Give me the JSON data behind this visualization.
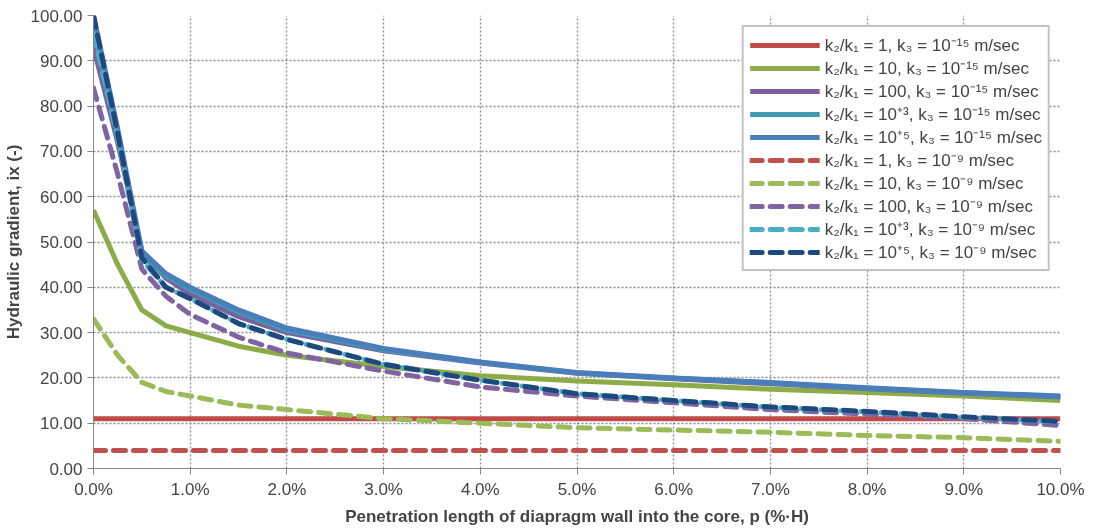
{
  "chart_data": {
    "type": "line",
    "xlabel": "Penetration length of diapragm wall into the core, p (%·H)",
    "ylabel": "Hydraulic gradient, ix (-)",
    "x": [
      0,
      0.25,
      0.5,
      0.75,
      1,
      1.5,
      2,
      3,
      4,
      5,
      6,
      7,
      8,
      9,
      10
    ],
    "xlim": [
      0,
      10
    ],
    "xticks": [
      {
        "value": 0,
        "label": "0.0%"
      },
      {
        "value": 1,
        "label": "1.0%"
      },
      {
        "value": 2,
        "label": "2.0%"
      },
      {
        "value": 3,
        "label": "3.0%"
      },
      {
        "value": 4,
        "label": "4.0%"
      },
      {
        "value": 5,
        "label": "5.0%"
      },
      {
        "value": 6,
        "label": "6.0%"
      },
      {
        "value": 7,
        "label": "7.0%"
      },
      {
        "value": 8,
        "label": "8.0%"
      },
      {
        "value": 9,
        "label": "9.0%"
      },
      {
        "value": 10,
        "label": "10.0%"
      }
    ],
    "ylim": [
      0,
      100
    ],
    "yticks": [
      {
        "value": 0,
        "label": "0.00"
      },
      {
        "value": 10,
        "label": "10.00"
      },
      {
        "value": 20,
        "label": "20.00"
      },
      {
        "value": 30,
        "label": "30.00"
      },
      {
        "value": 40,
        "label": "40.00"
      },
      {
        "value": 50,
        "label": "50.00"
      },
      {
        "value": 60,
        "label": "60.00"
      },
      {
        "value": 70,
        "label": "70.00"
      },
      {
        "value": 80,
        "label": "80.00"
      },
      {
        "value": 90,
        "label": "90.00"
      },
      {
        "value": 100,
        "label": "100.00"
      }
    ],
    "grid": true,
    "legend": "top right",
    "marker": "none",
    "series": [
      {
        "name": "k₂/k₁ = 1, k₃ = 10⁻¹⁵ m/sec",
        "color": "#be4b48",
        "line_style": "solid",
        "values": [
          11,
          11,
          11,
          11,
          11,
          11,
          11,
          11,
          11,
          11,
          11,
          11,
          11,
          11,
          11
        ]
      },
      {
        "name": "k₂/k₁ = 10, k₃ = 10⁻¹⁵ m/sec",
        "color": "#8bac46",
        "line_style": "solid",
        "values": [
          57,
          45,
          35,
          31.5,
          30,
          27,
          25,
          22.5,
          20.5,
          19.3,
          18.5,
          17.5,
          16.8,
          16,
          15
        ]
      },
      {
        "name": "k₂/k₁ = 100, k₃ = 10⁻¹⁵ m/sec",
        "color": "#7d5fa0",
        "line_style": "solid",
        "values": [
          93,
          72,
          48,
          42,
          38.5,
          33.5,
          30,
          26,
          23.3,
          21,
          19.8,
          18.7,
          17.6,
          16.6,
          15.8
        ]
      },
      {
        "name": "k₂/k₁ = 10⁺³, k₃ = 10⁻¹⁵ m/sec",
        "color": "#4198af",
        "line_style": "solid",
        "values": [
          97,
          73.5,
          47,
          42.5,
          39.5,
          34.5,
          30.5,
          26.2,
          23.4,
          21.1,
          19.9,
          18.9,
          17.7,
          16.7,
          15.9
        ]
      },
      {
        "name": "k₂/k₁ = 10⁺⁵, k₃ = 10⁻¹⁵ m/sec",
        "color": "#4a7ebb",
        "line_style": "solid",
        "values": [
          100,
          75,
          48,
          43,
          40,
          35,
          31,
          26.5,
          23.5,
          21.2,
          20,
          19,
          17.8,
          16.8,
          16
        ]
      },
      {
        "name": "k₂/k₁ = 1, k₃ = 10⁻⁹ m/sec",
        "color": "#c0504d",
        "line_style": "dashed",
        "values": [
          4,
          4,
          4,
          4,
          4,
          4,
          4,
          4,
          4,
          4,
          4,
          4,
          4,
          4,
          4
        ]
      },
      {
        "name": "k₂/k₁ = 10, k₃ = 10⁻⁹ m/sec",
        "color": "#9bbb59",
        "line_style": "dashed",
        "values": [
          33,
          25,
          19,
          17,
          16,
          14,
          13,
          11,
          10,
          9,
          8.5,
          8,
          7.3,
          6.8,
          6
        ]
      },
      {
        "name": "k₂/k₁ = 100, k₃ = 10⁻⁹ m/sec",
        "color": "#8064a2",
        "line_style": "dashed",
        "values": [
          84,
          65,
          44,
          38,
          34,
          29,
          25.5,
          21.5,
          18,
          16,
          14.5,
          13,
          12,
          11,
          9.5
        ]
      },
      {
        "name": "k₂/k₁ = 10⁺³, k₃ = 10⁻⁹ m/sec",
        "color": "#4bacc6",
        "line_style": "dashed",
        "values": [
          96,
          73,
          46,
          40,
          37.5,
          32,
          28.5,
          23,
          19.5,
          16.5,
          15,
          13.5,
          12.5,
          11.3,
          10.3
        ]
      },
      {
        "name": "k₂/k₁ = 10⁺⁵, k₃ = 10⁻⁹ m/sec",
        "color": "#1f497d",
        "line_style": "dashed",
        "values": [
          100,
          74,
          46.5,
          40,
          37.5,
          32,
          28.5,
          23,
          19.5,
          16.5,
          15,
          13.6,
          12.6,
          11.4,
          10.4
        ]
      }
    ]
  }
}
